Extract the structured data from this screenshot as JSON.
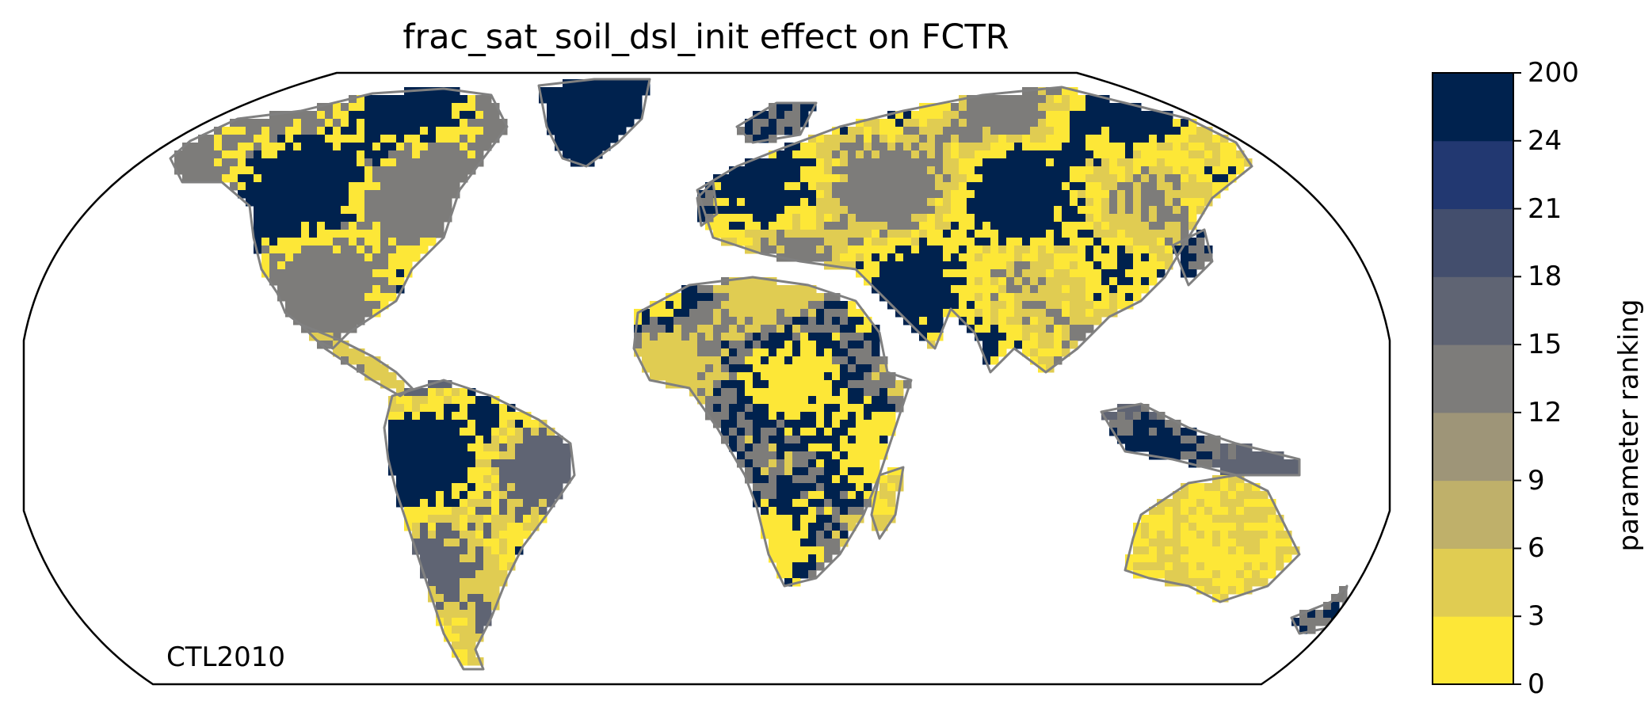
{
  "title": "frac_sat_soil_dsl_init effect on FCTR",
  "annotation": "CTL2010",
  "colorbar": {
    "label": "parameter ranking",
    "tick_labels": [
      "0",
      "3",
      "6",
      "9",
      "12",
      "15",
      "18",
      "21",
      "24",
      "200"
    ],
    "bins": [
      {
        "range": "0-3",
        "color": "#FDE737"
      },
      {
        "range": "3-6",
        "color": "#E0CC52"
      },
      {
        "range": "6-9",
        "color": "#BFB06A"
      },
      {
        "range": "9-12",
        "color": "#9E9578"
      },
      {
        "range": "12-15",
        "color": "#7D7C7A"
      },
      {
        "range": "15-18",
        "color": "#5F6473"
      },
      {
        "range": "18-21",
        "color": "#434E6D"
      },
      {
        "range": "21-24",
        "color": "#223871"
      },
      {
        "range": "24-200",
        "color": "#00224E"
      }
    ]
  },
  "colors": {
    "coastline": "#808080",
    "frame": "#000000"
  },
  "map_regions": [
    {
      "name": "north-america",
      "dominant_bins": [
        8,
        0,
        4
      ]
    },
    {
      "name": "south-america",
      "dominant_bins": [
        8,
        0,
        1,
        5
      ]
    },
    {
      "name": "africa",
      "dominant_bins": [
        0,
        8,
        4,
        1
      ]
    },
    {
      "name": "eurasia",
      "dominant_bins": [
        8,
        0,
        1,
        4
      ]
    },
    {
      "name": "australia",
      "dominant_bins": [
        1,
        0
      ]
    },
    {
      "name": "greenland",
      "dominant_bins": [
        8
      ]
    }
  ]
}
